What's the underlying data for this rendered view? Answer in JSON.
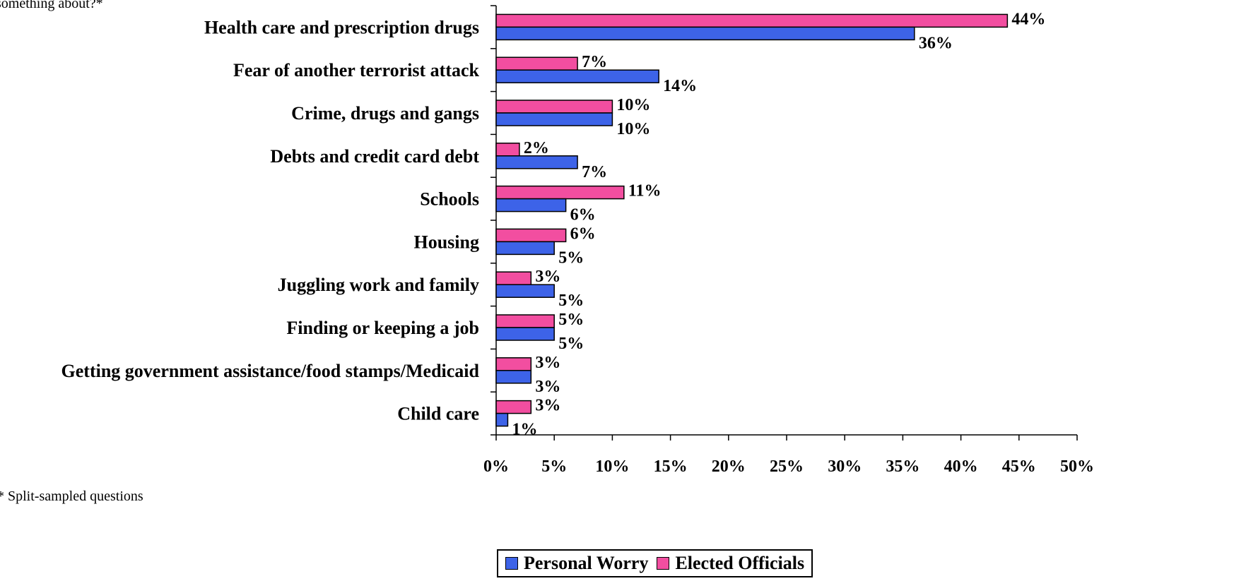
{
  "header": {
    "question_fragment": "something about?*"
  },
  "footnote": "* Split-sampled questions",
  "colors": {
    "personal": "#3d63e8",
    "officials": "#f24ea0"
  },
  "chart_data": {
    "type": "bar",
    "orientation": "horizontal",
    "categories": [
      "Health care and prescription drugs",
      "Fear of another terrorist attack",
      "Crime, drugs and gangs",
      "Debts and credit card debt",
      "Schools",
      "Housing",
      "Juggling work and family",
      "Finding or keeping a job",
      "Getting government assistance/food stamps/Medicaid",
      "Child care"
    ],
    "series": [
      {
        "name": "Personal Worry",
        "color": "#3d63e8",
        "values": [
          36,
          14,
          10,
          7,
          6,
          5,
          5,
          5,
          3,
          1
        ]
      },
      {
        "name": "Elected Officials",
        "color": "#f24ea0",
        "values": [
          44,
          7,
          10,
          2,
          11,
          6,
          3,
          5,
          3,
          3
        ]
      }
    ],
    "value_labels": {
      "Personal Worry": [
        "36%",
        "14%",
        "10%",
        "7%",
        "6%",
        "5%",
        "5%",
        "5%",
        "3%",
        "1%"
      ],
      "Elected Officials": [
        "44%",
        "7%",
        "10%",
        "2%",
        "11%",
        "6%",
        "3%",
        "5%",
        "3%",
        "3%"
      ]
    },
    "xlim": [
      0,
      50
    ],
    "xticks": [
      "0%",
      "5%",
      "10%",
      "15%",
      "20%",
      "25%",
      "30%",
      "35%",
      "40%",
      "45%",
      "50%"
    ],
    "grid": false,
    "legend_position": "bottom"
  }
}
